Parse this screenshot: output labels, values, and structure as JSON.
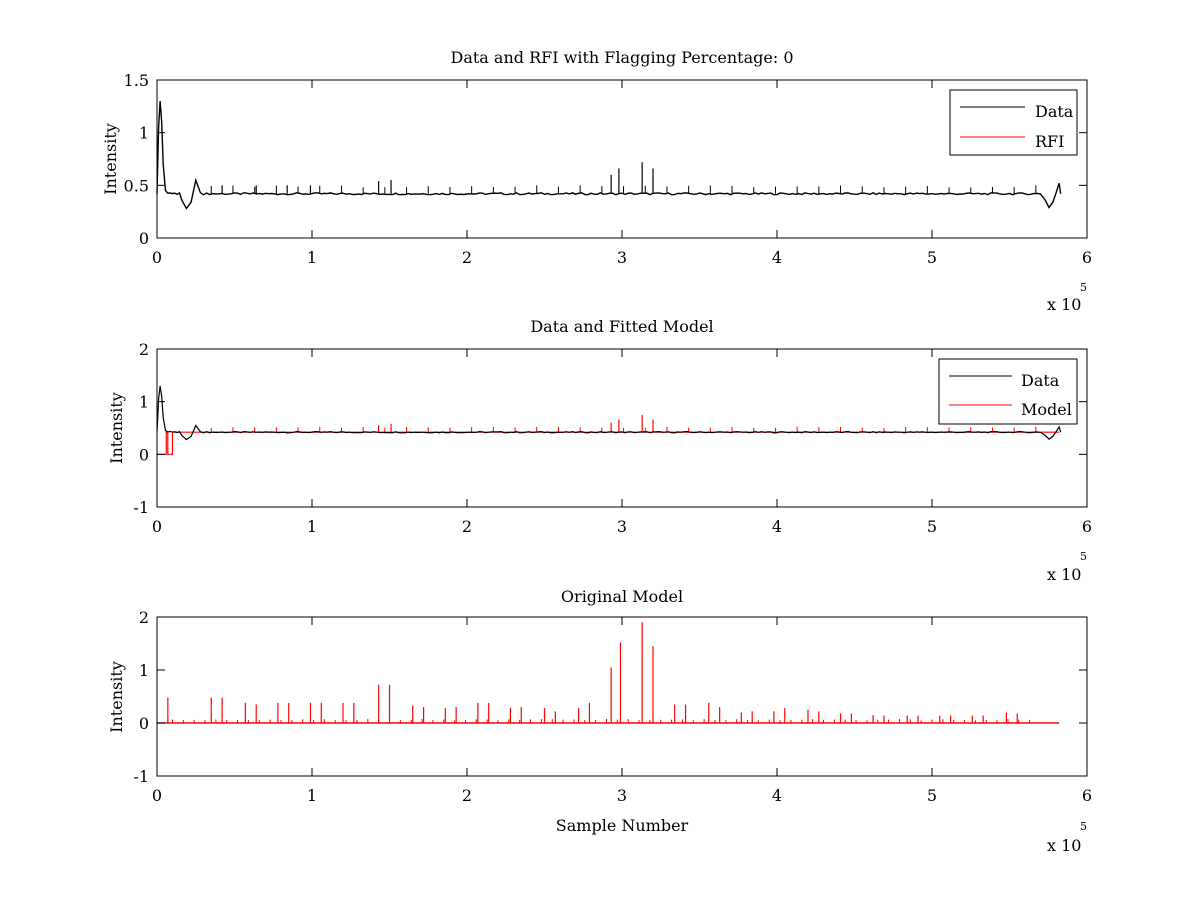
{
  "chart_data": [
    {
      "type": "line",
      "title": "Data and RFI with Flagging Percentage: 0",
      "xlabel": "",
      "ylabel": "Intensity",
      "xlim": [
        0,
        600000
      ],
      "ylim": [
        0,
        1.5
      ],
      "x_ticks": [
        "0",
        "1",
        "2",
        "3",
        "4",
        "5",
        "6"
      ],
      "y_ticks": [
        "0",
        "0.5",
        "1",
        "1.5"
      ],
      "x_multiplier": "x 10",
      "x_multiplier_exp": "5",
      "legend_position": "top-right",
      "series": [
        {
          "name": "Data",
          "color": "#000000",
          "baseline": 0.42,
          "start_peak": 1.3,
          "start_dip": 0.28,
          "bump_x": 25000,
          "bump_y": 0.55,
          "end_dip_x": 575000,
          "end_dip_y": 0.28,
          "end_x": 582000,
          "end_y": 0.52,
          "spikes": [
            [
              42000,
              0.5
            ],
            [
              64000,
              0.5
            ],
            [
              84000,
              0.5
            ],
            [
              99000,
              0.5
            ],
            [
              143000,
              0.54
            ],
            [
              151000,
              0.55
            ],
            [
              293000,
              0.6
            ],
            [
              298000,
              0.66
            ],
            [
              313000,
              0.72
            ],
            [
              320000,
              0.66
            ]
          ]
        },
        {
          "name": "RFI",
          "color": "#ff0000"
        }
      ]
    },
    {
      "type": "line",
      "title": "Data and Fitted Model",
      "xlabel": "",
      "ylabel": "Intensity",
      "xlim": [
        0,
        600000
      ],
      "ylim": [
        -1,
        2
      ],
      "x_ticks": [
        "0",
        "1",
        "2",
        "3",
        "4",
        "5",
        "6"
      ],
      "y_ticks": [
        "-1",
        "0",
        "1",
        "2"
      ],
      "x_multiplier": "x 10",
      "x_multiplier_exp": "5",
      "legend_position": "top-right",
      "series": [
        {
          "name": "Data",
          "color": "#000000",
          "baseline": 0.42
        },
        {
          "name": "Model",
          "color": "#ff0000",
          "baseline": 0.42,
          "step_low": 0.0,
          "step_end_x": 10000,
          "spikes": [
            [
              143000,
              0.55
            ],
            [
              151000,
              0.58
            ],
            [
              293000,
              0.6
            ],
            [
              298000,
              0.66
            ],
            [
              313000,
              0.75
            ],
            [
              320000,
              0.66
            ]
          ]
        }
      ]
    },
    {
      "type": "line",
      "title": "Original Model",
      "xlabel": "Sample Number",
      "ylabel": "Intensity",
      "xlim": [
        0,
        600000
      ],
      "ylim": [
        -1,
        2
      ],
      "x_ticks": [
        "0",
        "1",
        "2",
        "3",
        "4",
        "5",
        "6"
      ],
      "y_ticks": [
        "-1",
        "0",
        "1",
        "2"
      ],
      "x_multiplier": "x 10",
      "x_multiplier_exp": "5",
      "series": [
        {
          "color": "#ff0000",
          "baseline": 0.0,
          "xmax": 582000,
          "spikes": [
            [
              7000,
              0.48
            ],
            [
              35000,
              0.48
            ],
            [
              42000,
              0.48
            ],
            [
              57000,
              0.38
            ],
            [
              64000,
              0.35
            ],
            [
              78000,
              0.38
            ],
            [
              85000,
              0.38
            ],
            [
              99000,
              0.38
            ],
            [
              106000,
              0.38
            ],
            [
              120000,
              0.38
            ],
            [
              127000,
              0.38
            ],
            [
              143000,
              0.72
            ],
            [
              150000,
              0.72
            ],
            [
              165000,
              0.33
            ],
            [
              172000,
              0.3
            ],
            [
              186000,
              0.28
            ],
            [
              193000,
              0.3
            ],
            [
              207000,
              0.38
            ],
            [
              214000,
              0.38
            ],
            [
              228000,
              0.28
            ],
            [
              235000,
              0.3
            ],
            [
              250000,
              0.28
            ],
            [
              257000,
              0.22
            ],
            [
              272000,
              0.28
            ],
            [
              279000,
              0.38
            ],
            [
              293000,
              1.05
            ],
            [
              299000,
              1.52
            ],
            [
              313000,
              1.9
            ],
            [
              320000,
              1.45
            ],
            [
              334000,
              0.35
            ],
            [
              341000,
              0.35
            ],
            [
              356000,
              0.38
            ],
            [
              363000,
              0.3
            ],
            [
              377000,
              0.2
            ],
            [
              384000,
              0.22
            ],
            [
              398000,
              0.22
            ],
            [
              405000,
              0.28
            ],
            [
              420000,
              0.25
            ],
            [
              427000,
              0.22
            ],
            [
              441000,
              0.18
            ],
            [
              448000,
              0.18
            ],
            [
              462000,
              0.15
            ],
            [
              469000,
              0.14
            ],
            [
              484000,
              0.14
            ],
            [
              491000,
              0.14
            ],
            [
              505000,
              0.14
            ],
            [
              512000,
              0.14
            ],
            [
              526000,
              0.14
            ],
            [
              533000,
              0.14
            ],
            [
              548000,
              0.2
            ],
            [
              555000,
              0.18
            ]
          ]
        }
      ]
    }
  ]
}
